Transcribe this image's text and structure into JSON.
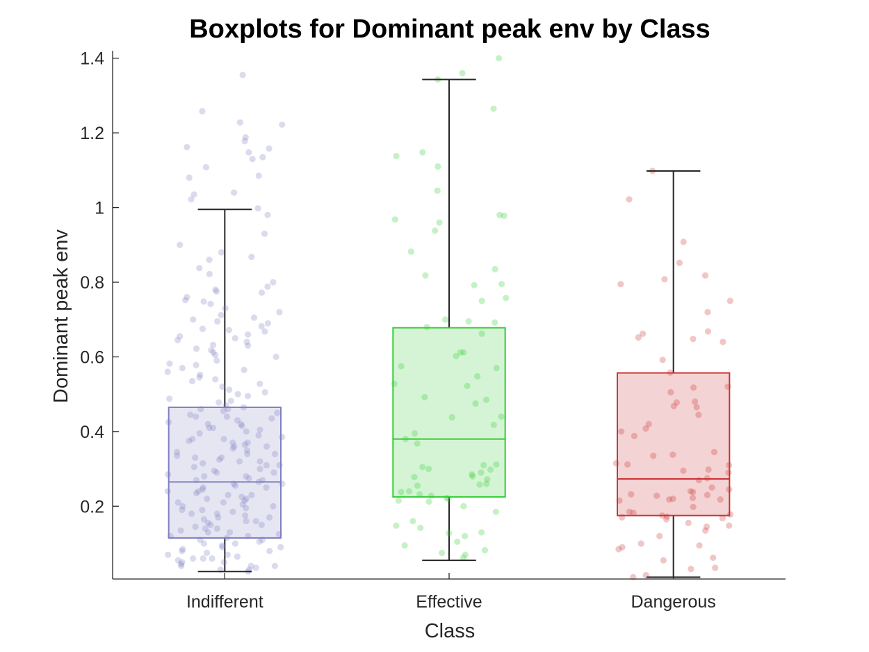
{
  "chart_data": {
    "type": "boxplot",
    "title": "Boxplots for Dominant peak env by Class",
    "xlabel": "Class",
    "ylabel": "Dominant peak env",
    "ylim": [
      0.005,
      1.42
    ],
    "yticks": [
      0.2,
      0.4,
      0.6,
      0.8,
      1,
      1.2,
      1.4
    ],
    "ytick_labels": [
      "0.2",
      "0.4",
      "0.6",
      "0.8",
      "1",
      "1.2",
      "1.4"
    ],
    "categories": [
      "Indifferent",
      "Effective",
      "Dangerous"
    ],
    "grid": false,
    "legend": "none",
    "series": [
      {
        "category": "Indifferent",
        "color": "#7f7fc2",
        "fill": "#e6e6f3",
        "whisker_low": 0.025,
        "q1": 0.115,
        "median": 0.265,
        "q3": 0.465,
        "whisker_high": 0.995,
        "points": [
          1.355,
          1.258,
          1.228,
          1.222,
          1.188,
          1.178,
          1.162,
          1.158,
          1.148,
          1.135,
          1.13,
          1.108,
          1.085,
          1.08,
          1.04,
          1.035,
          1.022,
          0.998,
          0.98,
          0.93,
          0.9,
          0.88,
          0.868,
          0.86,
          0.838,
          0.822,
          0.8,
          0.788,
          0.78,
          0.775,
          0.772,
          0.76,
          0.752,
          0.748,
          0.742,
          0.73,
          0.72,
          0.712,
          0.705,
          0.7,
          0.695,
          0.69,
          0.682,
          0.675,
          0.672,
          0.668,
          0.66,
          0.655,
          0.65,
          0.645,
          0.64,
          0.632,
          0.63,
          0.622,
          0.618,
          0.612,
          0.605,
          0.6,
          0.59,
          0.582,
          0.578,
          0.57,
          0.565,
          0.56,
          0.552,
          0.545,
          0.54,
          0.535,
          0.528,
          0.52,
          0.512,
          0.505,
          0.5,
          0.495,
          0.488,
          0.482,
          0.478,
          0.47,
          0.465,
          0.46,
          0.455,
          0.45,
          0.445,
          0.44,
          0.435,
          0.43,
          0.425,
          0.42,
          0.415,
          0.41,
          0.405,
          0.4,
          0.395,
          0.39,
          0.385,
          0.38,
          0.375,
          0.37,
          0.365,
          0.36,
          0.355,
          0.35,
          0.345,
          0.34,
          0.335,
          0.33,
          0.325,
          0.32,
          0.315,
          0.31,
          0.305,
          0.3,
          0.295,
          0.29,
          0.285,
          0.28,
          0.275,
          0.27,
          0.265,
          0.26,
          0.255,
          0.25,
          0.245,
          0.24,
          0.235,
          0.23,
          0.225,
          0.22,
          0.215,
          0.21,
          0.205,
          0.2,
          0.195,
          0.19,
          0.185,
          0.18,
          0.175,
          0.17,
          0.165,
          0.16,
          0.155,
          0.15,
          0.145,
          0.14,
          0.135,
          0.13,
          0.125,
          0.12,
          0.115,
          0.11,
          0.105,
          0.1,
          0.095,
          0.09,
          0.085,
          0.08,
          0.075,
          0.07,
          0.065,
          0.06,
          0.055,
          0.05,
          0.045,
          0.04,
          0.035,
          0.03,
          0.025,
          0.42,
          0.38,
          0.33,
          0.29,
          0.25,
          0.21,
          0.17,
          0.13,
          0.09,
          0.06,
          0.44,
          0.36,
          0.31,
          0.27,
          0.23,
          0.19,
          0.15,
          0.11,
          0.07,
          0.04,
          0.46,
          0.34,
          0.28,
          0.24,
          0.2,
          0.16,
          0.12,
          0.08,
          0.05,
          0.03,
          0.41,
          0.37,
          0.32,
          0.26,
          0.22,
          0.18,
          0.14,
          0.1,
          0.06,
          0.04
        ]
      },
      {
        "category": "Effective",
        "color": "#33cc33",
        "fill": "#d5f4d5",
        "whisker_low": 0.055,
        "q1": 0.225,
        "median": 0.38,
        "q3": 0.678,
        "whisker_high": 1.343,
        "points": [
          1.4,
          1.36,
          1.343,
          1.265,
          1.148,
          1.138,
          1.11,
          1.045,
          0.98,
          0.978,
          0.968,
          0.96,
          0.938,
          0.882,
          0.835,
          0.818,
          0.795,
          0.792,
          0.758,
          0.75,
          0.7,
          0.695,
          0.692,
          0.68,
          0.662,
          0.612,
          0.612,
          0.602,
          0.575,
          0.57,
          0.548,
          0.528,
          0.522,
          0.492,
          0.485,
          0.475,
          0.44,
          0.438,
          0.418,
          0.395,
          0.38,
          0.368,
          0.312,
          0.31,
          0.305,
          0.3,
          0.298,
          0.29,
          0.285,
          0.28,
          0.278,
          0.272,
          0.26,
          0.258,
          0.255,
          0.24,
          0.238,
          0.232,
          0.228,
          0.222,
          0.22,
          0.215,
          0.212,
          0.2,
          0.185,
          0.16,
          0.148,
          0.142,
          0.13,
          0.128,
          0.12,
          0.105,
          0.095,
          0.082,
          0.075,
          0.07,
          0.062
        ]
      },
      {
        "category": "Dangerous",
        "color": "#cc3333",
        "fill": "#f3d3d3",
        "whisker_low": 0.01,
        "q1": 0.175,
        "median": 0.273,
        "q3": 0.557,
        "whisker_high": 1.098,
        "points": [
          1.098,
          1.022,
          0.908,
          0.852,
          0.818,
          0.808,
          0.795,
          0.75,
          0.72,
          0.668,
          0.662,
          0.652,
          0.648,
          0.64,
          0.592,
          0.558,
          0.52,
          0.518,
          0.505,
          0.48,
          0.478,
          0.468,
          0.465,
          0.445,
          0.42,
          0.408,
          0.4,
          0.388,
          0.345,
          0.338,
          0.335,
          0.315,
          0.312,
          0.31,
          0.298,
          0.295,
          0.29,
          0.275,
          0.27,
          0.25,
          0.245,
          0.24,
          0.238,
          0.232,
          0.23,
          0.228,
          0.222,
          0.22,
          0.218,
          0.218,
          0.215,
          0.198,
          0.185,
          0.182,
          0.178,
          0.175,
          0.172,
          0.17,
          0.168,
          0.165,
          0.155,
          0.148,
          0.145,
          0.135,
          0.12,
          0.1,
          0.095,
          0.09,
          0.085,
          0.062,
          0.055,
          0.035,
          0.032,
          0.015,
          0.01
        ]
      }
    ]
  }
}
